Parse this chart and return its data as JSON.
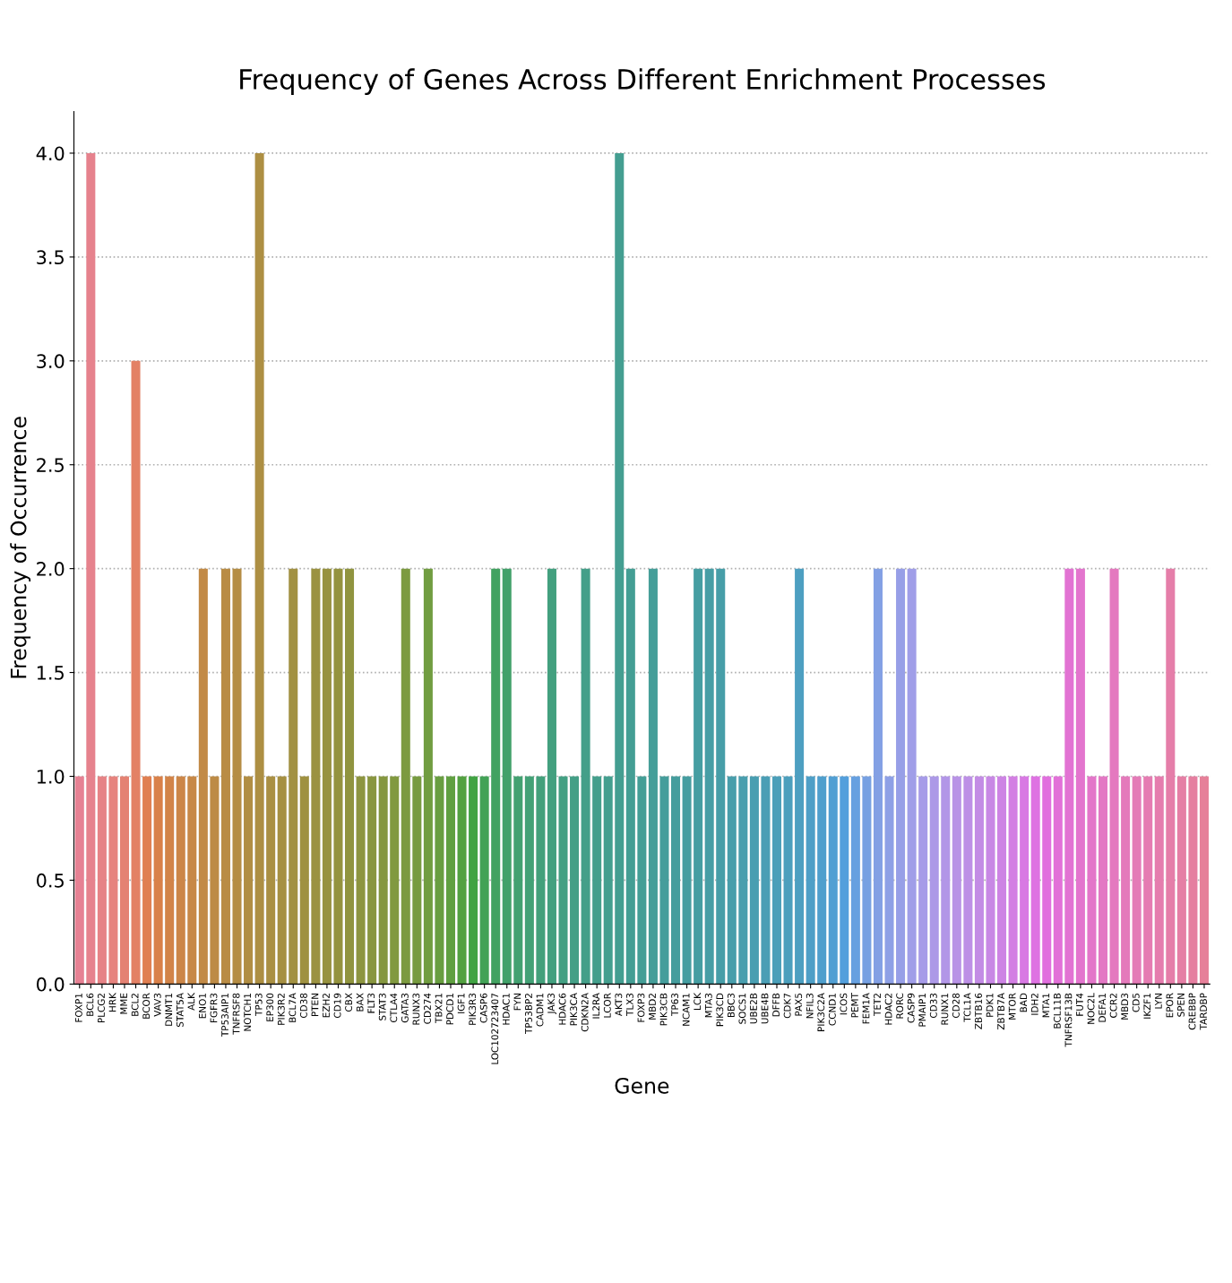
{
  "chart_data": {
    "type": "bar",
    "title": "Frequency of Genes Across Different Enrichment Processes",
    "xlabel": "Gene",
    "ylabel": "Frequency of Occurrence",
    "categories": [
      "FOXP1",
      "BCL6",
      "PLCG2",
      "HRK",
      "MME",
      "BCL2",
      "BCOR",
      "VAV3",
      "DNMT1",
      "STAT5A",
      "ALK",
      "ENO1",
      "FGFR3",
      "TP53AIP1",
      "TNFRSF8",
      "NOTCH1",
      "TP53",
      "EP300",
      "PIK3R2",
      "BCL7A",
      "CD38",
      "PTEN",
      "EZH2",
      "CD19",
      "CBX",
      "BAX",
      "FLT3",
      "STAT3",
      "CTLA4",
      "GATA3",
      "RUNX3",
      "CD274",
      "TBX21",
      "PDCD1",
      "IGF1",
      "PIK3R3",
      "CASP6",
      "LOC102723407",
      "HDAC1",
      "FYN",
      "TP53BP2",
      "CADM1",
      "JAK3",
      "HDAC6",
      "PIK3CA",
      "CDKN2A",
      "IL2RA",
      "LCOR",
      "AKT3",
      "TLX3",
      "FOXP3",
      "MBD2",
      "PIK3CB",
      "TP63",
      "NCAM1",
      "LCK",
      "MTA3",
      "PIK3CD",
      "BBC3",
      "SOCS1",
      "UBE2B",
      "UBE4B",
      "DFFB",
      "CDK7",
      "PAX5",
      "NFIL3",
      "PIK3C2A",
      "CCND1",
      "ICOS",
      "PEMT",
      "FEM1A",
      "TET2",
      "HDAC2",
      "RORC",
      "CASP9",
      "PMAIP1",
      "CD33",
      "RUNX1",
      "CD28",
      "TCL1A",
      "ZBTB16",
      "PDK1",
      "ZBTB7A",
      "MTOR",
      "BAD",
      "IDH2",
      "MTA1",
      "BCL11B",
      "TNFRSF13B",
      "FUT4",
      "NOC2L",
      "DEFA1",
      "CCR2",
      "MBD3",
      "CD5",
      "IKZF1",
      "LYN",
      "EPOR",
      "SPEN",
      "CREBBP",
      "TARDBP"
    ],
    "values": [
      1,
      4,
      1,
      1,
      1,
      3,
      1,
      1,
      1,
      1,
      1,
      2,
      1,
      2,
      2,
      1,
      4,
      1,
      1,
      2,
      1,
      2,
      2,
      2,
      2,
      1,
      1,
      1,
      1,
      2,
      1,
      2,
      1,
      1,
      1,
      1,
      1,
      2,
      2,
      1,
      1,
      1,
      2,
      1,
      1,
      2,
      1,
      1,
      4,
      2,
      1,
      2,
      1,
      1,
      1,
      2,
      2,
      2,
      1,
      1,
      1,
      1,
      1,
      1,
      2,
      1,
      1,
      1,
      1,
      1,
      1,
      2,
      1,
      2,
      2,
      1,
      1,
      1,
      1,
      1,
      1,
      1,
      1,
      1,
      1,
      1,
      1,
      1,
      2,
      2,
      1,
      1,
      2,
      1,
      1,
      1,
      1,
      2,
      1,
      1,
      1
    ],
    "colors": [
      "#e68193",
      "#e6828d",
      "#e68386",
      "#e6837e",
      "#e48273",
      "#e38165",
      "#e07f51",
      "#d9814a",
      "#d28449",
      "#cc8648",
      "#c78847",
      "#c28a46",
      "#bd8b46",
      "#b98c45",
      "#b58d44",
      "#b18e44",
      "#ad8f43",
      "#aa9043",
      "#a69042",
      "#a29142",
      "#9f9141",
      "#9b9241",
      "#979240",
      "#94933f",
      "#90943f",
      "#8d9540",
      "#899640",
      "#859740",
      "#819940",
      "#7c9a40",
      "#779b40",
      "#719d41",
      "#699e41",
      "#60a041",
      "#53a141",
      "#41a343",
      "#42a256",
      "#42a261",
      "#42a16a",
      "#43a171",
      "#43a176",
      "#43a07b",
      "#43a07f",
      "#43a083",
      "#449f86",
      "#449f89",
      "#449f8c",
      "#449f8f",
      "#449e91",
      "#449e94",
      "#449e96",
      "#459e99",
      "#459d9b",
      "#459d9d",
      "#459da0",
      "#469ea2",
      "#479ea5",
      "#479ea8",
      "#489eab",
      "#499eae",
      "#499eb1",
      "#4a9eb5",
      "#4b9fb9",
      "#4c9fbd",
      "#4d9fc1",
      "#4e9fc7",
      "#4f9fcd",
      "#519fd3",
      "#539fdc",
      "#66a0e0",
      "#76a0e2",
      "#83a0e4",
      "#8ea0e6",
      "#979fe7",
      "#a09ee8",
      "#a69be8",
      "#ac99e7",
      "#b296e7",
      "#b893e6",
      "#bd90e6",
      "#c38ce5",
      "#c888e5",
      "#cd84e4",
      "#d37fe3",
      "#d879e3",
      "#de72e2",
      "#e16fde",
      "#e271d8",
      "#e273d3",
      "#e375ce",
      "#e376c9",
      "#e378c4",
      "#e479bf",
      "#e47abb",
      "#e47bb7",
      "#e57cb2",
      "#e57dae",
      "#e57ea9",
      "#e57fa5",
      "#e57fa0",
      "#e68099"
    ],
    "ylim": [
      0,
      4.2
    ],
    "yticks": [
      {
        "value": 0,
        "label": "0.0"
      },
      {
        "value": 0.5,
        "label": "0.5"
      },
      {
        "value": 1,
        "label": "1.0"
      },
      {
        "value": 1.5,
        "label": "1.5"
      },
      {
        "value": 2,
        "label": "2.0"
      },
      {
        "value": 2.5,
        "label": "2.5"
      },
      {
        "value": 3,
        "label": "3.0"
      },
      {
        "value": 3.5,
        "label": "3.5"
      },
      {
        "value": 4,
        "label": "4.0"
      }
    ],
    "grid": "y"
  }
}
